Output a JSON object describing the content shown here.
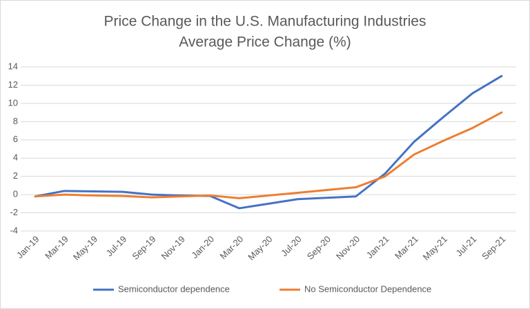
{
  "chart_data": {
    "type": "line",
    "title": "Price Change in the U.S. Manufacturing Industries",
    "subtitle": "Average Price Change (%)",
    "categories": [
      "Jan-19",
      "Mar-19",
      "May-19",
      "Jul-19",
      "Sep-19",
      "Nov-19",
      "Jan-20",
      "Mar-20",
      "May-20",
      "Jul-20",
      "Sep-20",
      "Nov-20",
      "Jan-21",
      "Mar-21",
      "May-21",
      "Jul-21",
      "Sep-21"
    ],
    "series": [
      {
        "name": "Semiconductor dependence",
        "color": "#4472c4",
        "values": [
          -0.2,
          0.4,
          0.35,
          0.3,
          0.0,
          -0.1,
          -0.15,
          -1.5,
          -1.0,
          -0.5,
          -0.35,
          -0.2,
          2.3,
          5.8,
          8.5,
          11.1,
          13.0
        ]
      },
      {
        "name": "No Semiconductor Dependence",
        "color": "#ed7d31",
        "values": [
          -0.2,
          0.0,
          -0.1,
          -0.15,
          -0.3,
          -0.2,
          -0.1,
          -0.4,
          -0.1,
          0.2,
          0.5,
          0.8,
          2.0,
          4.4,
          5.9,
          7.3,
          9.0
        ]
      }
    ],
    "ylim": [
      -4,
      14
    ],
    "yticks": [
      -4,
      -2,
      0,
      2,
      4,
      6,
      8,
      10,
      12,
      14
    ],
    "grid": true,
    "legend": "bottom"
  }
}
